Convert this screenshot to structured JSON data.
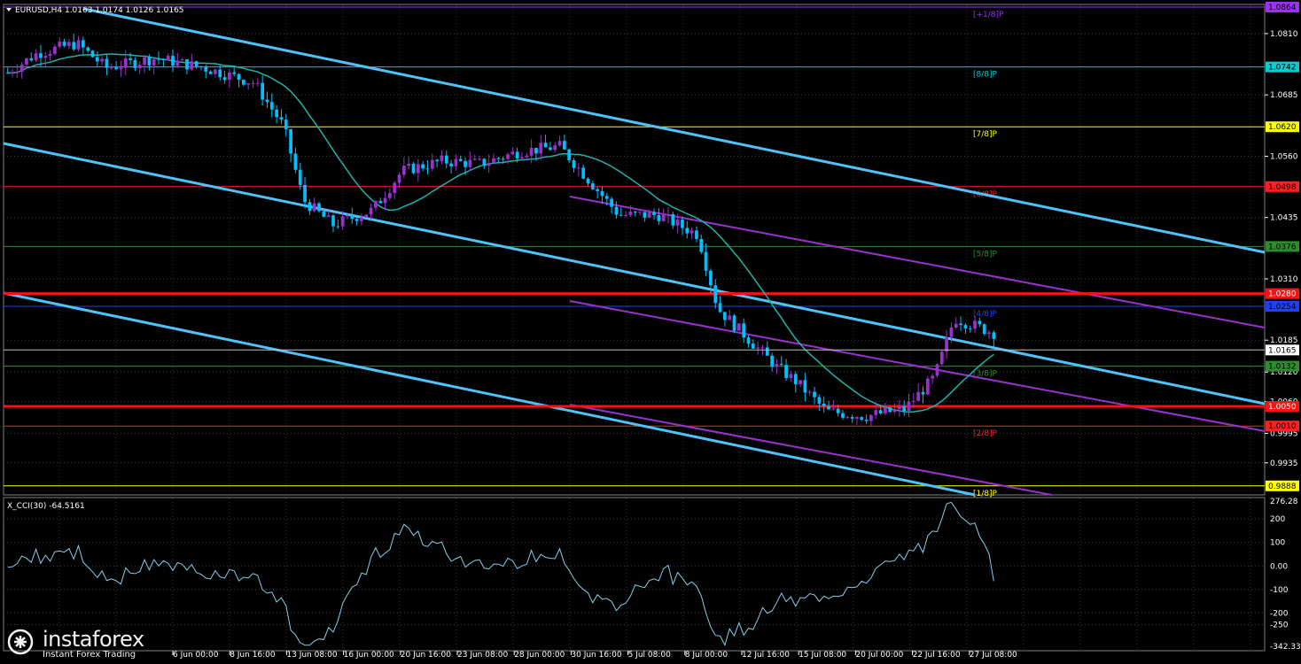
{
  "chart_data": [
    {
      "type": "candlestick",
      "symbol": "EURUSD",
      "timeframe": "H4",
      "header": "EURUSD,H4  1.0163 1.0174 1.0126 1.0165",
      "ohlc_last": {
        "open": 1.0163,
        "high": 1.0174,
        "low": 1.0126,
        "close": 1.0165
      },
      "ylim": [
        0.9875,
        1.0864
      ],
      "price_ticks": [
        "1.0810",
        "1.0685",
        "1.0560",
        "1.0435",
        "1.0310",
        "1.0185",
        "1.0120",
        "1.0060",
        "0.9995",
        "0.9935"
      ],
      "current_price": "1.0165",
      "current_price_value": 1.0165,
      "time_labels": [
        "6 Jun 00:00",
        "8 Jun 16:00",
        "13 Jun 08:00",
        "16 Jun 00:00",
        "20 Jun 16:00",
        "23 Jun 08:00",
        "28 Jun 00:00",
        "30 Jun 16:00",
        "5 Jul 08:00",
        "8 Jul 00:00",
        "12 Jul 16:00",
        "15 Jul 08:00",
        "20 Jul 00:00",
        "22 Jul 16:00",
        "27 Jul 08:00"
      ],
      "murrey_levels": [
        {
          "label": "[+1/8]P",
          "price": 1.0864,
          "tag": "1.0864",
          "color": "#9b30ff"
        },
        {
          "label": "[8/8]P",
          "price": 1.0742,
          "tag": "1.0742",
          "color": "#00ced1"
        },
        {
          "label": "[7/8]P",
          "price": 1.062,
          "tag": "1.0620",
          "color": "#ffff00"
        },
        {
          "label": "[6/8]P",
          "price": 1.0498,
          "tag": "1.0498",
          "color": "#ff2020"
        },
        {
          "label": "[5/8]P",
          "price": 1.0376,
          "tag": "1.0376",
          "color": "#2e8b2e"
        },
        {
          "label": "[4/8]P",
          "price": 1.0254,
          "tag": "1.0254",
          "color": "#1f3fff"
        },
        {
          "label": "[3/8]P",
          "price": 1.0132,
          "tag": "1.0132",
          "color": "#2e8b2e"
        },
        {
          "label": "[2/8]P",
          "price": 1.001,
          "tag": "1.0010",
          "color": "#ff2020"
        },
        {
          "label": "[1/8]P",
          "price": 0.9888,
          "tag": "0.9888",
          "color": "#ffff00"
        }
      ],
      "support_resistance": [
        {
          "price": 1.028,
          "tag": "1.0280",
          "color": "#ff1010"
        },
        {
          "price": 1.005,
          "tag": "1.0050",
          "color": "#ff1010"
        }
      ],
      "moving_average_color": "#20b2aa",
      "bull_color": "#9932cc",
      "bear_color": "#00bfff"
    },
    {
      "type": "line",
      "indicator": "X_CCI(30)",
      "header": "X_CCI(30) -64.5161",
      "value_last": -64.5161,
      "ylim": [
        -342.3,
        276.3
      ],
      "ticks": [
        "276.28",
        "200",
        "100",
        "0.00",
        "-100",
        "-200",
        "-250",
        "-342.334"
      ],
      "levels": [
        200,
        100,
        0,
        -100,
        -200,
        -250
      ],
      "color": "#87ceeb"
    }
  ],
  "watermark": {
    "brand": "instaforex",
    "tagline": "Instant Forex Trading"
  },
  "colors": {
    "background": "#000000",
    "grid": "#3a3a3a",
    "axis_text": "#ffffff",
    "channel": "#4fc3f7",
    "channel_inner": "#9932cc"
  }
}
